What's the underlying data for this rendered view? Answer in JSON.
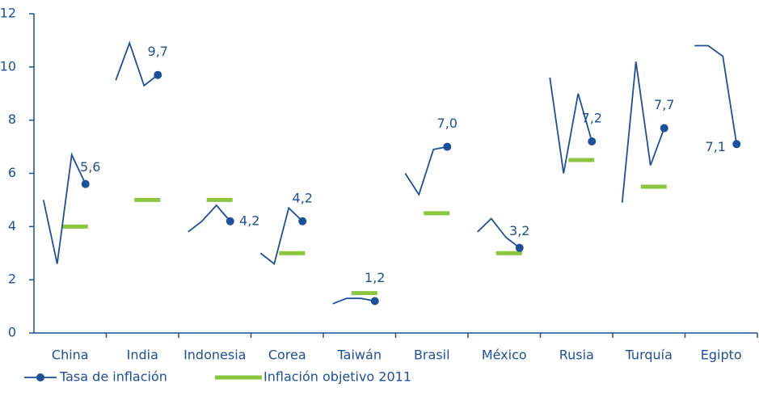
{
  "chart_data": {
    "type": "line",
    "categories": [
      "China",
      "India",
      "Indonesia",
      "Corea",
      "Taiwán",
      "Brasil",
      "México",
      "Rusia",
      "Turquía",
      "Egipto"
    ],
    "series": [
      {
        "name": "Tasa de inflación",
        "color": "#1c4f9c",
        "values": [
          [
            5.0,
            2.6,
            6.7,
            5.6
          ],
          [
            9.5,
            10.9,
            9.3,
            9.7
          ],
          [
            3.8,
            4.2,
            4.8,
            4.2
          ],
          [
            3.0,
            2.6,
            4.7,
            4.2
          ],
          [
            1.1,
            1.3,
            1.3,
            1.2
          ],
          [
            6.0,
            5.2,
            6.9,
            7.0
          ],
          [
            3.8,
            4.3,
            3.6,
            3.2
          ],
          [
            9.6,
            6.0,
            9.0,
            7.2
          ],
          [
            4.9,
            10.2,
            6.3,
            7.7
          ],
          [
            10.8,
            10.8,
            10.4,
            7.1
          ]
        ],
        "value_labels": [
          "5,6",
          "9,7",
          "4,2",
          "4,2",
          "1,2",
          "7,0",
          "3,2",
          "7,2",
          "7,7",
          "7,1"
        ]
      },
      {
        "name": "Inflación objetivo 2011",
        "color": "#8cc63f",
        "values": [
          4,
          5,
          5,
          3,
          1.5,
          4.5,
          3,
          6.5,
          5.5,
          null
        ]
      }
    ],
    "ylim": [
      0,
      12
    ],
    "yticks": [
      0,
      2,
      4,
      6,
      8,
      10,
      12
    ]
  }
}
